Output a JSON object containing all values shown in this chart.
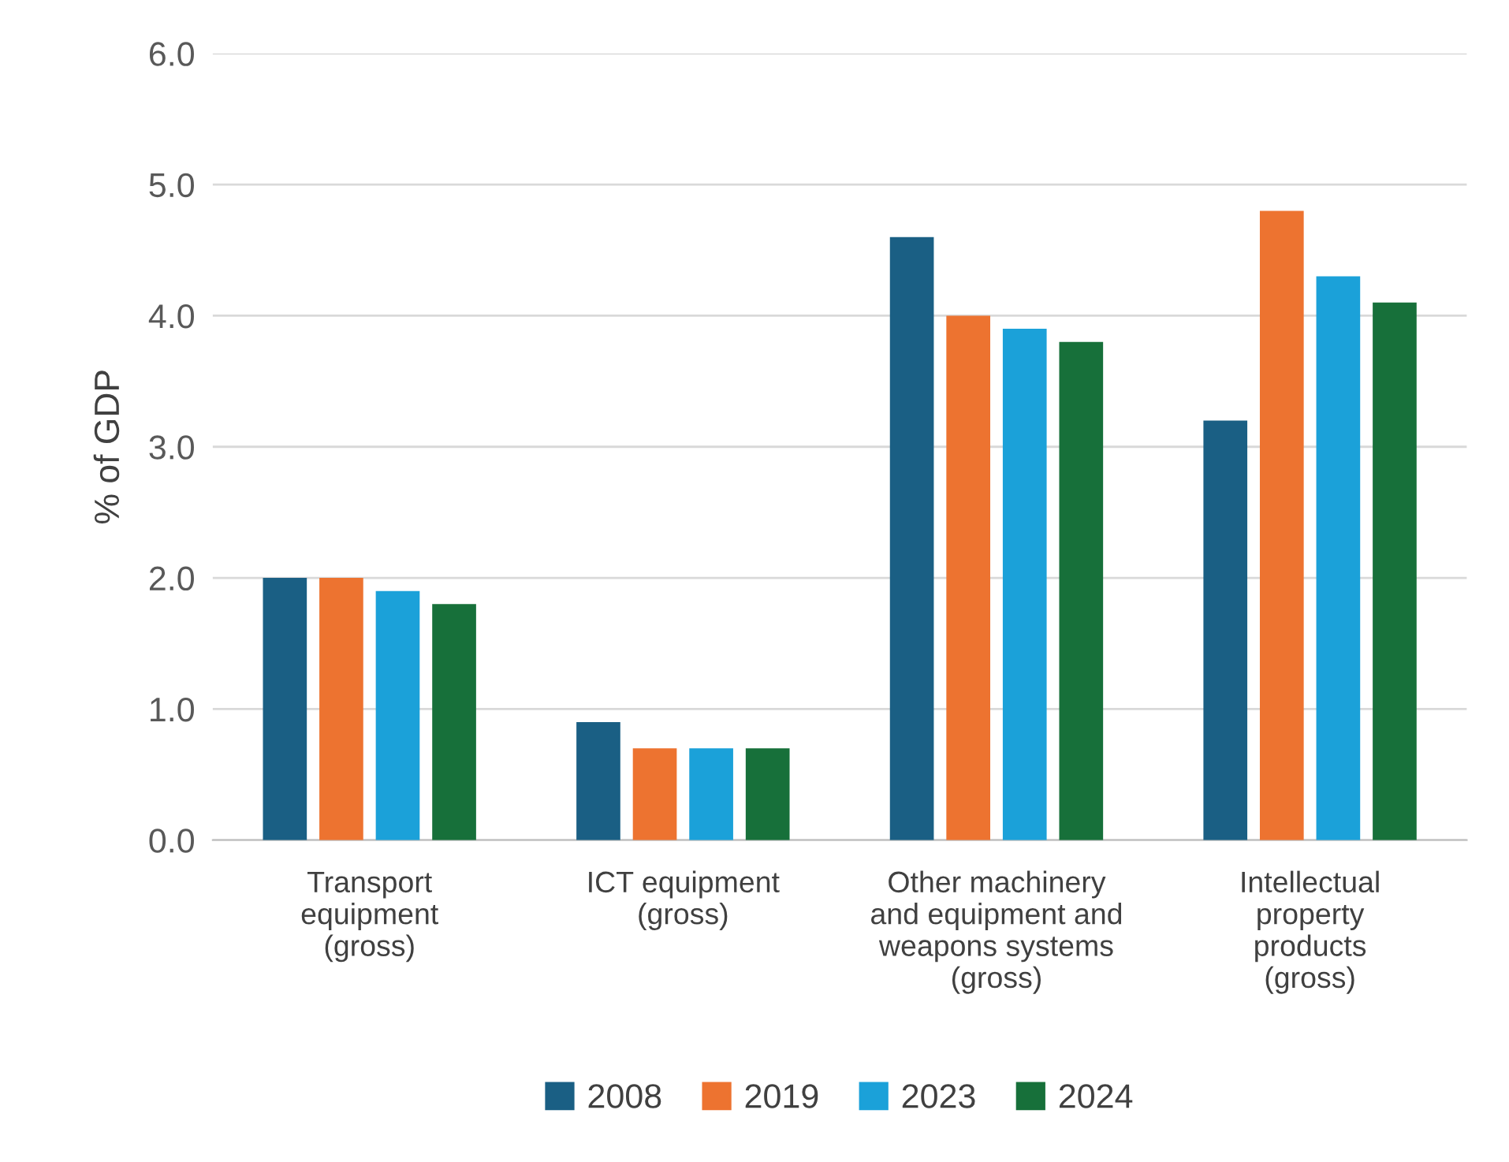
{
  "chart_data": {
    "type": "bar",
    "ylabel": "% of GDP",
    "categories": [
      "Transport\nequipment\n(gross)",
      "ICT equipment\n(gross)",
      "Other machinery\nand equipment and\nweapons systems\n(gross)",
      "Intellectual\nproperty\nproducts\n(gross)"
    ],
    "series": [
      {
        "name": "2008",
        "color": "#1a5f84",
        "values": [
          2.0,
          0.9,
          4.6,
          3.2
        ]
      },
      {
        "name": "2019",
        "color": "#ed7330",
        "values": [
          2.0,
          0.7,
          4.0,
          4.8
        ]
      },
      {
        "name": "2023",
        "color": "#1ba1d9",
        "values": [
          1.9,
          0.7,
          3.9,
          4.3
        ]
      },
      {
        "name": "2024",
        "color": "#17703a",
        "values": [
          1.8,
          0.7,
          3.8,
          4.1
        ]
      }
    ],
    "ylim": [
      0,
      6
    ],
    "yticks": [
      {
        "value": 0,
        "label": "0.0"
      },
      {
        "value": 1,
        "label": "1.0"
      },
      {
        "value": 2,
        "label": "2.0"
      },
      {
        "value": 3,
        "label": "3.0"
      },
      {
        "value": 4,
        "label": "4.0"
      },
      {
        "value": 5,
        "label": "5.0"
      },
      {
        "value": 6,
        "label": "6.0"
      }
    ],
    "grid": "y",
    "legend": "bottom"
  }
}
